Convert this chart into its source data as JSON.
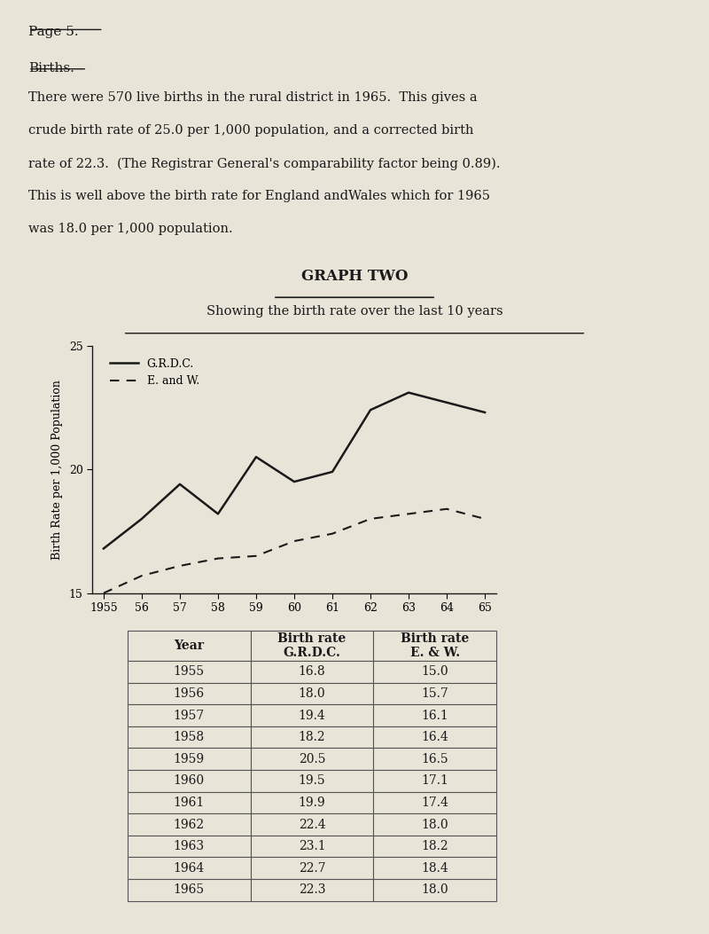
{
  "page_header": "Page 5.",
  "section_header": "Births.",
  "paragraph_lines": [
    "There were 570 live births in the rural district in 1965.  This gives a",
    "crude birth rate of 25.0 per 1,000 population, and a corrected birth",
    "rate of 22.3.  (The Registrar General's comparability factor being 0.89).",
    "This is well above the birth rate for England andWales which for 1965",
    "was 18.0 per 1,000 population."
  ],
  "graph_title": "GRAPH TWO",
  "graph_subtitle": "Showing the birth rate over the last 10 years",
  "years": [
    1955,
    1956,
    1957,
    1958,
    1959,
    1960,
    1961,
    1962,
    1963,
    1964,
    1965
  ],
  "grdc_rates": [
    16.8,
    18.0,
    19.4,
    18.2,
    20.5,
    19.5,
    19.9,
    22.4,
    23.1,
    22.7,
    22.3
  ],
  "ew_rates": [
    15.0,
    15.7,
    16.1,
    16.4,
    16.5,
    17.1,
    17.4,
    18.0,
    18.2,
    18.4,
    18.0
  ],
  "x_tick_labels": [
    "1955",
    "56",
    "57",
    "58",
    "59",
    "60",
    "61",
    "62",
    "63",
    "64",
    "65"
  ],
  "ylabel": "Birth Rate per 1,000 Population",
  "ylim": [
    15,
    25
  ],
  "yticks": [
    15,
    20,
    25
  ],
  "legend_grdc": "G.R.D.C.",
  "legend_ew": "E. and W.",
  "table_years": [
    "1955",
    "1956",
    "1957",
    "1958",
    "1959",
    "1960",
    "1961",
    "1962",
    "1963",
    "1964",
    "1965"
  ],
  "table_grdc": [
    "16.8",
    "18.0",
    "19.4",
    "18.2",
    "20.5",
    "19.5",
    "19.9",
    "22.4",
    "23.1",
    "22.7",
    "22.3"
  ],
  "table_ew": [
    "15.0",
    "15.7",
    "16.1",
    "16.4",
    "16.5",
    "17.1",
    "17.4",
    "18.0",
    "18.2",
    "18.4",
    "18.0"
  ],
  "bg_color": "#e8e4d8",
  "text_color": "#1a1a1a",
  "line_color_grdc": "#1a1a1a",
  "line_color_ew": "#1a1a1a"
}
